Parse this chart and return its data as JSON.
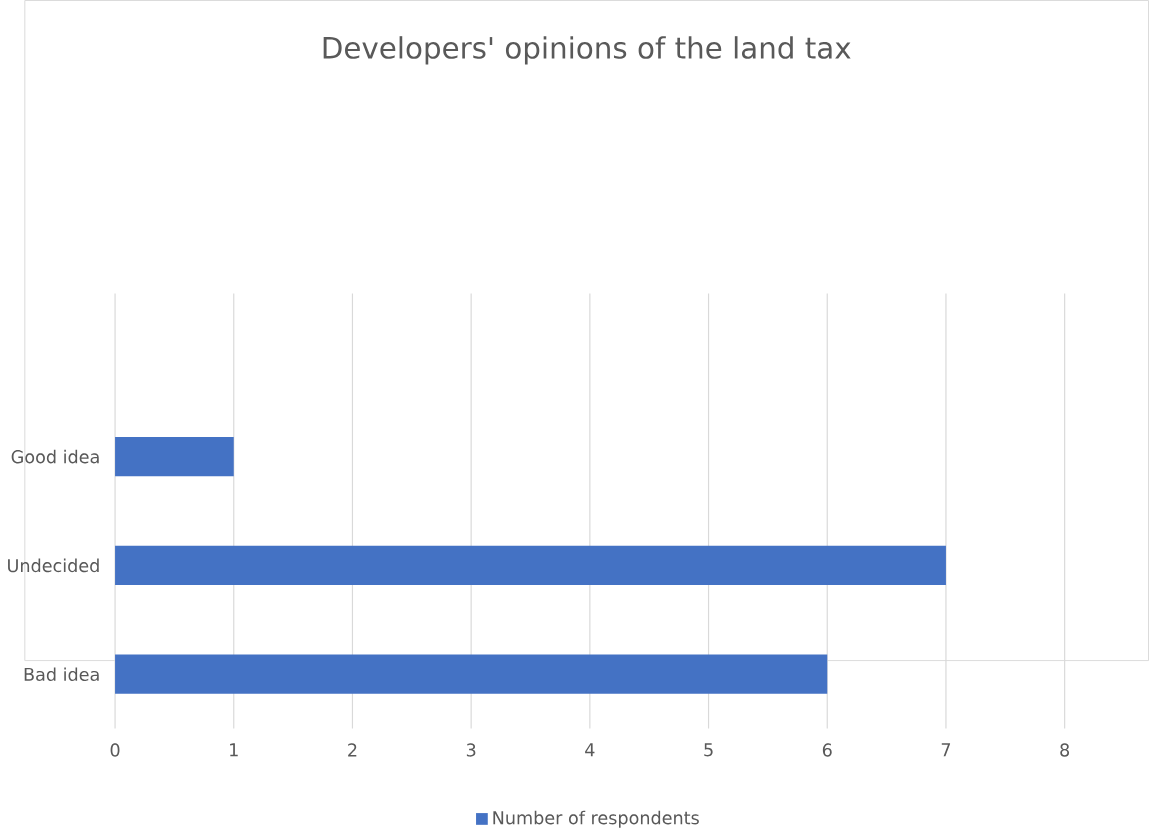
{
  "chart_data": {
    "type": "bar",
    "orientation": "horizontal",
    "title": "Developers' opinions of the land tax",
    "categories": [
      null,
      "Good idea",
      "Undecided",
      "Bad idea"
    ],
    "series": [
      {
        "name": "Number of respondents",
        "color": "#4472c4",
        "values": [
          null,
          1,
          7,
          6
        ]
      }
    ],
    "xlim": [
      0,
      8
    ],
    "xticks": [
      0,
      1,
      2,
      3,
      4,
      5,
      6,
      7,
      8
    ],
    "grid": "x",
    "legend": "bottom"
  }
}
